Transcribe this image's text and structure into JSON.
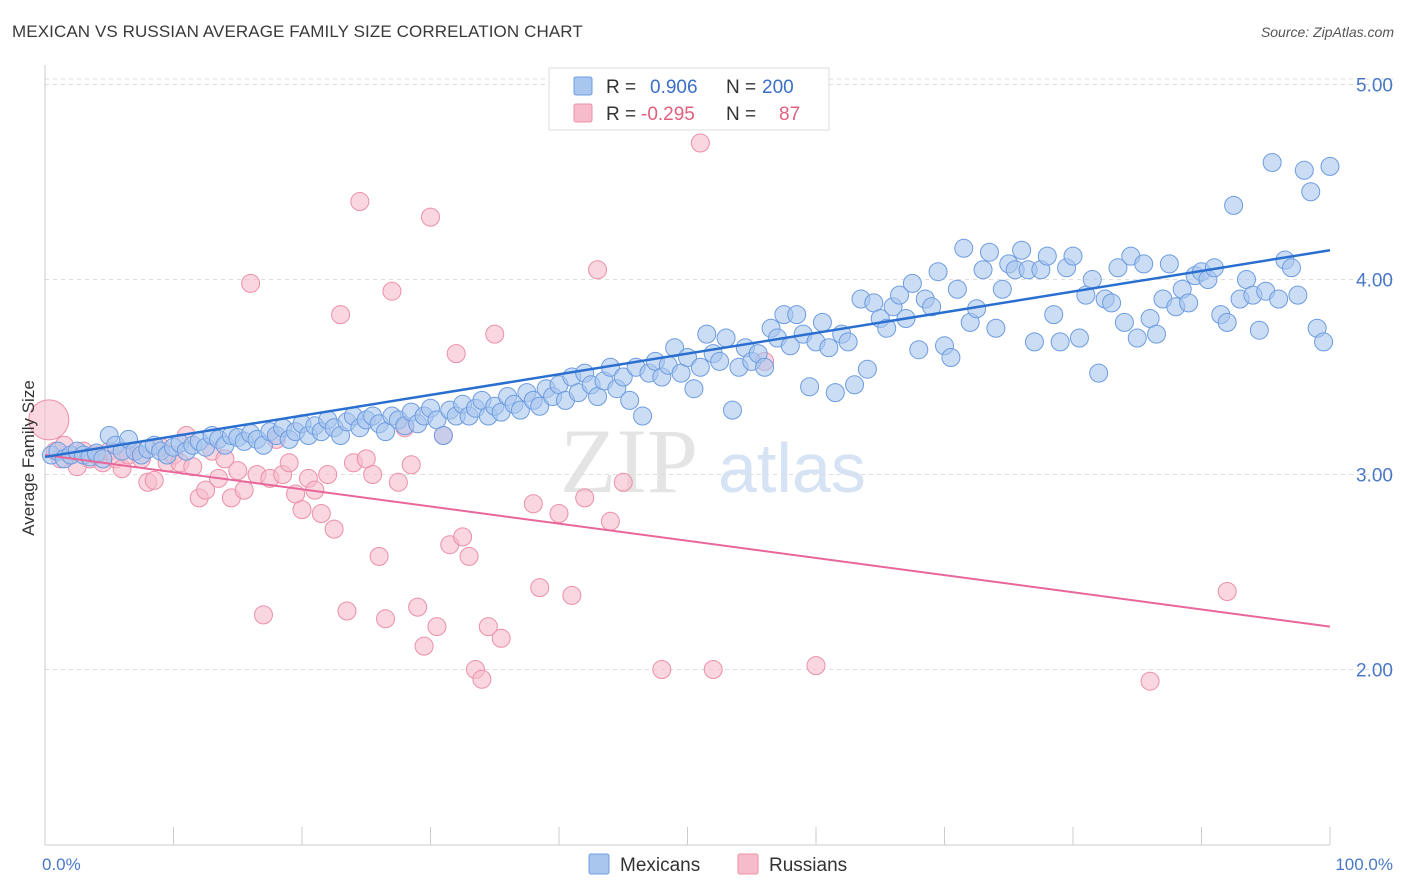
{
  "title": "MEXICAN VS RUSSIAN AVERAGE FAMILY SIZE CORRELATION CHART",
  "source": "Source: ZipAtlas.com",
  "watermark": {
    "zip": "ZIP",
    "atlas": "atlas"
  },
  "colors": {
    "mexicans_fill": "#a9c6ee",
    "mexicans_stroke": "#6d9ce0",
    "mexicans_line": "#2a6fd0",
    "russians_fill": "#f6bccb",
    "russians_stroke": "#ec8fa8",
    "russians_line": "#e8669a",
    "tick_text": "#4a78c8",
    "grid": "#dddddd"
  },
  "legend": {
    "rows": [
      {
        "r_label": "R =",
        "r_value": "0.906",
        "n_label": "N =",
        "n_value": "200"
      },
      {
        "r_label": "R =",
        "r_value": "-0.295",
        "n_label": "N =",
        "n_value": "87"
      }
    ]
  },
  "bottom_legend": [
    "Mexicans",
    "Russians"
  ],
  "chart_data": {
    "type": "scatter",
    "title": "MEXICAN VS RUSSIAN AVERAGE FAMILY SIZE CORRELATION CHART",
    "xlabel": "",
    "ylabel": "Average Family Size",
    "xlim": [
      0,
      100
    ],
    "ylim": [
      1.1,
      5.1
    ],
    "x_tick_labels": [
      "0.0%",
      "100.0%"
    ],
    "y_ticks": [
      2.0,
      3.0,
      4.0,
      5.0
    ],
    "y_tick_labels": [
      "2.00",
      "3.00",
      "4.00",
      "5.00"
    ],
    "grid": true,
    "legend_position": "top-center",
    "series": [
      {
        "name": "Mexicans",
        "r": 0.906,
        "n": 200,
        "trend": {
          "x": [
            0,
            100
          ],
          "y": [
            3.09,
            4.15
          ]
        },
        "points": [
          [
            0.5,
            3.1
          ],
          [
            1.0,
            3.12
          ],
          [
            1.5,
            3.08
          ],
          [
            2.0,
            3.1
          ],
          [
            2.5,
            3.12
          ],
          [
            3.0,
            3.1
          ],
          [
            3.5,
            3.09
          ],
          [
            4.0,
            3.11
          ],
          [
            4.5,
            3.08
          ],
          [
            5.0,
            3.2
          ],
          [
            5.5,
            3.15
          ],
          [
            6.0,
            3.12
          ],
          [
            6.5,
            3.18
          ],
          [
            7.0,
            3.12
          ],
          [
            7.5,
            3.1
          ],
          [
            8.0,
            3.13
          ],
          [
            8.5,
            3.15
          ],
          [
            9.0,
            3.12
          ],
          [
            9.5,
            3.1
          ],
          [
            10.0,
            3.14
          ],
          [
            10.5,
            3.16
          ],
          [
            11.0,
            3.12
          ],
          [
            11.5,
            3.15
          ],
          [
            12.0,
            3.17
          ],
          [
            12.5,
            3.14
          ],
          [
            13.0,
            3.2
          ],
          [
            13.5,
            3.18
          ],
          [
            14.0,
            3.15
          ],
          [
            14.5,
            3.2
          ],
          [
            15.0,
            3.19
          ],
          [
            15.5,
            3.17
          ],
          [
            16.0,
            3.21
          ],
          [
            16.5,
            3.18
          ],
          [
            17.0,
            3.15
          ],
          [
            17.5,
            3.22
          ],
          [
            18.0,
            3.2
          ],
          [
            18.5,
            3.24
          ],
          [
            19.0,
            3.18
          ],
          [
            19.5,
            3.22
          ],
          [
            20.0,
            3.26
          ],
          [
            20.5,
            3.2
          ],
          [
            21.0,
            3.25
          ],
          [
            21.5,
            3.22
          ],
          [
            22.0,
            3.28
          ],
          [
            22.5,
            3.24
          ],
          [
            23.0,
            3.2
          ],
          [
            23.5,
            3.27
          ],
          [
            24.0,
            3.3
          ],
          [
            24.5,
            3.24
          ],
          [
            25.0,
            3.28
          ],
          [
            25.5,
            3.3
          ],
          [
            26.0,
            3.26
          ],
          [
            26.5,
            3.22
          ],
          [
            27.0,
            3.3
          ],
          [
            27.5,
            3.28
          ],
          [
            28.0,
            3.25
          ],
          [
            28.5,
            3.32
          ],
          [
            29.0,
            3.26
          ],
          [
            29.5,
            3.3
          ],
          [
            30.0,
            3.34
          ],
          [
            30.5,
            3.28
          ],
          [
            31.0,
            3.2
          ],
          [
            31.5,
            3.33
          ],
          [
            32.0,
            3.3
          ],
          [
            32.5,
            3.36
          ],
          [
            33.0,
            3.3
          ],
          [
            33.5,
            3.34
          ],
          [
            34.0,
            3.38
          ],
          [
            34.5,
            3.3
          ],
          [
            35.0,
            3.35
          ],
          [
            35.5,
            3.32
          ],
          [
            36.0,
            3.4
          ],
          [
            36.5,
            3.36
          ],
          [
            37.0,
            3.33
          ],
          [
            37.5,
            3.42
          ],
          [
            38.0,
            3.38
          ],
          [
            38.5,
            3.35
          ],
          [
            39.0,
            3.44
          ],
          [
            39.5,
            3.4
          ],
          [
            40.0,
            3.46
          ],
          [
            40.5,
            3.38
          ],
          [
            41.0,
            3.5
          ],
          [
            41.5,
            3.42
          ],
          [
            42.0,
            3.52
          ],
          [
            42.5,
            3.46
          ],
          [
            43.0,
            3.4
          ],
          [
            43.5,
            3.48
          ],
          [
            44.0,
            3.55
          ],
          [
            44.5,
            3.44
          ],
          [
            45.0,
            3.5
          ],
          [
            45.5,
            3.38
          ],
          [
            46.0,
            3.55
          ],
          [
            46.5,
            3.3
          ],
          [
            47.0,
            3.52
          ],
          [
            47.5,
            3.58
          ],
          [
            48.0,
            3.5
          ],
          [
            48.5,
            3.56
          ],
          [
            49.0,
            3.65
          ],
          [
            49.5,
            3.52
          ],
          [
            50.0,
            3.6
          ],
          [
            50.5,
            3.44
          ],
          [
            51.0,
            3.55
          ],
          [
            51.5,
            3.72
          ],
          [
            52.0,
            3.62
          ],
          [
            52.5,
            3.58
          ],
          [
            53.0,
            3.7
          ],
          [
            53.5,
            3.33
          ],
          [
            54.0,
            3.55
          ],
          [
            54.5,
            3.65
          ],
          [
            55.0,
            3.58
          ],
          [
            55.5,
            3.62
          ],
          [
            56.0,
            3.55
          ],
          [
            56.5,
            3.75
          ],
          [
            57.0,
            3.7
          ],
          [
            57.5,
            3.82
          ],
          [
            58.0,
            3.66
          ],
          [
            58.5,
            3.82
          ],
          [
            59.0,
            3.72
          ],
          [
            59.5,
            3.45
          ],
          [
            60.0,
            3.68
          ],
          [
            60.5,
            3.78
          ],
          [
            61.0,
            3.65
          ],
          [
            61.5,
            3.42
          ],
          [
            62.0,
            3.72
          ],
          [
            62.5,
            3.68
          ],
          [
            63.0,
            3.46
          ],
          [
            63.5,
            3.9
          ],
          [
            64.0,
            3.54
          ],
          [
            64.5,
            3.88
          ],
          [
            65.0,
            3.8
          ],
          [
            65.5,
            3.75
          ],
          [
            66.0,
            3.86
          ],
          [
            66.5,
            3.92
          ],
          [
            67.0,
            3.8
          ],
          [
            67.5,
            3.98
          ],
          [
            68.0,
            3.64
          ],
          [
            68.5,
            3.9
          ],
          [
            69.0,
            3.86
          ],
          [
            69.5,
            4.04
          ],
          [
            70.0,
            3.66
          ],
          [
            70.5,
            3.6
          ],
          [
            71.0,
            3.95
          ],
          [
            71.5,
            4.16
          ],
          [
            72.0,
            3.78
          ],
          [
            72.5,
            3.85
          ],
          [
            73.0,
            4.05
          ],
          [
            73.5,
            4.14
          ],
          [
            74.0,
            3.75
          ],
          [
            74.5,
            3.95
          ],
          [
            75.0,
            4.08
          ],
          [
            75.5,
            4.05
          ],
          [
            76.0,
            4.15
          ],
          [
            76.5,
            4.05
          ],
          [
            77.0,
            3.68
          ],
          [
            77.5,
            4.05
          ],
          [
            78.0,
            4.12
          ],
          [
            78.5,
            3.82
          ],
          [
            79.0,
            3.68
          ],
          [
            79.5,
            4.06
          ],
          [
            80.0,
            4.12
          ],
          [
            80.5,
            3.7
          ],
          [
            81.0,
            3.92
          ],
          [
            81.5,
            4.0
          ],
          [
            82.0,
            3.52
          ],
          [
            82.5,
            3.9
          ],
          [
            83.0,
            3.88
          ],
          [
            83.5,
            4.06
          ],
          [
            84.0,
            3.78
          ],
          [
            84.5,
            4.12
          ],
          [
            85.0,
            3.7
          ],
          [
            85.5,
            4.08
          ],
          [
            86.0,
            3.8
          ],
          [
            86.5,
            3.72
          ],
          [
            87.0,
            3.9
          ],
          [
            87.5,
            4.08
          ],
          [
            88.0,
            3.86
          ],
          [
            88.5,
            3.95
          ],
          [
            89.0,
            3.88
          ],
          [
            89.5,
            4.02
          ],
          [
            90.0,
            4.04
          ],
          [
            90.5,
            4.0
          ],
          [
            91.0,
            4.06
          ],
          [
            91.5,
            3.82
          ],
          [
            92.0,
            3.78
          ],
          [
            92.5,
            4.38
          ],
          [
            93.0,
            3.9
          ],
          [
            93.5,
            4.0
          ],
          [
            94.0,
            3.92
          ],
          [
            94.5,
            3.74
          ],
          [
            95.0,
            3.94
          ],
          [
            95.5,
            4.6
          ],
          [
            96.0,
            3.9
          ],
          [
            96.5,
            4.1
          ],
          [
            97.0,
            4.06
          ],
          [
            97.5,
            3.92
          ],
          [
            98.0,
            4.56
          ],
          [
            98.5,
            4.45
          ],
          [
            99.0,
            3.75
          ],
          [
            99.5,
            3.68
          ],
          [
            100.0,
            4.58
          ]
        ]
      },
      {
        "name": "Russians",
        "r": -0.295,
        "n": 87,
        "trend": {
          "x": [
            0,
            100
          ],
          "y": [
            3.1,
            2.22
          ]
        },
        "points": [
          [
            0.3,
            3.28
          ],
          [
            0.8,
            3.12
          ],
          [
            1.2,
            3.08
          ],
          [
            1.5,
            3.15
          ],
          [
            2.0,
            3.1
          ],
          [
            2.5,
            3.04
          ],
          [
            3.0,
            3.12
          ],
          [
            3.5,
            3.08
          ],
          [
            4.0,
            3.1
          ],
          [
            4.5,
            3.06
          ],
          [
            5.0,
            3.12
          ],
          [
            5.5,
            3.08
          ],
          [
            6.0,
            3.03
          ],
          [
            6.5,
            3.1
          ],
          [
            7.0,
            3.12
          ],
          [
            7.5,
            3.08
          ],
          [
            8.0,
            2.96
          ],
          [
            8.5,
            2.97
          ],
          [
            9.0,
            3.14
          ],
          [
            9.5,
            3.06
          ],
          [
            10.0,
            3.1
          ],
          [
            10.5,
            3.06
          ],
          [
            11.0,
            3.2
          ],
          [
            11.5,
            3.04
          ],
          [
            12.0,
            2.88
          ],
          [
            12.5,
            2.92
          ],
          [
            13.0,
            3.12
          ],
          [
            13.5,
            2.98
          ],
          [
            14.0,
            3.08
          ],
          [
            14.5,
            2.88
          ],
          [
            15.0,
            3.02
          ],
          [
            15.5,
            2.92
          ],
          [
            16.0,
            3.98
          ],
          [
            16.5,
            3.0
          ],
          [
            17.0,
            2.28
          ],
          [
            17.5,
            2.98
          ],
          [
            18.0,
            3.18
          ],
          [
            18.5,
            3.0
          ],
          [
            19.0,
            3.06
          ],
          [
            19.5,
            2.9
          ],
          [
            20.0,
            2.82
          ],
          [
            20.5,
            2.98
          ],
          [
            21.0,
            2.92
          ],
          [
            21.5,
            2.8
          ],
          [
            22.0,
            3.0
          ],
          [
            22.5,
            2.72
          ],
          [
            23.0,
            3.82
          ],
          [
            23.5,
            2.3
          ],
          [
            24.0,
            3.06
          ],
          [
            24.5,
            4.4
          ],
          [
            25.0,
            3.08
          ],
          [
            25.5,
            3.0
          ],
          [
            26.0,
            2.58
          ],
          [
            26.5,
            2.26
          ],
          [
            27.0,
            3.94
          ],
          [
            27.5,
            2.96
          ],
          [
            28.0,
            3.24
          ],
          [
            28.5,
            3.05
          ],
          [
            29.0,
            2.32
          ],
          [
            29.5,
            2.12
          ],
          [
            30.0,
            4.32
          ],
          [
            30.5,
            2.22
          ],
          [
            31.0,
            3.2
          ],
          [
            31.5,
            2.64
          ],
          [
            32.0,
            3.62
          ],
          [
            32.5,
            2.68
          ],
          [
            33.0,
            2.58
          ],
          [
            33.5,
            2.0
          ],
          [
            34.0,
            1.95
          ],
          [
            34.5,
            2.22
          ],
          [
            35.0,
            3.72
          ],
          [
            35.5,
            2.16
          ],
          [
            38.0,
            2.85
          ],
          [
            38.5,
            2.42
          ],
          [
            40.0,
            2.8
          ],
          [
            41.0,
            2.38
          ],
          [
            42.0,
            2.88
          ],
          [
            43.0,
            4.05
          ],
          [
            44.0,
            2.76
          ],
          [
            45.0,
            2.96
          ],
          [
            48.0,
            2.0
          ],
          [
            51.0,
            4.7
          ],
          [
            52.0,
            2.0
          ],
          [
            56.0,
            3.58
          ],
          [
            60.0,
            2.02
          ],
          [
            86.0,
            1.94
          ],
          [
            92.0,
            2.4
          ]
        ]
      }
    ]
  }
}
